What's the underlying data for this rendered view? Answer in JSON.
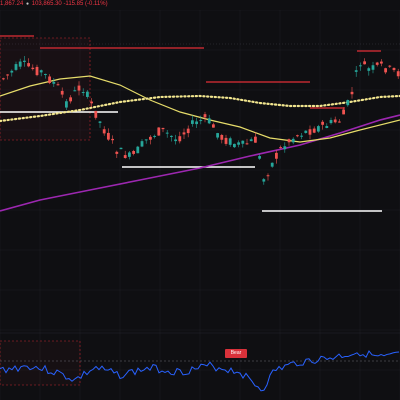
{
  "header": {
    "price_text": "1,867.24",
    "ticker_icon": "bullish-cell-icon",
    "change_value": "103,865.30",
    "change_pct": "-115.85 (-0.11%)"
  },
  "indicator": {
    "badge_label": "Bear"
  },
  "colors": {
    "up_candle": "#26a69a",
    "down_candle": "#ef5350",
    "ma_fast": "#e6dc6a",
    "ma_dotted": "#f2e68f",
    "ma_slow": "#9c27b0",
    "level_lines": "#ffffff",
    "resistance": "#e02d36",
    "oscillator": "#2962ff"
  }
}
